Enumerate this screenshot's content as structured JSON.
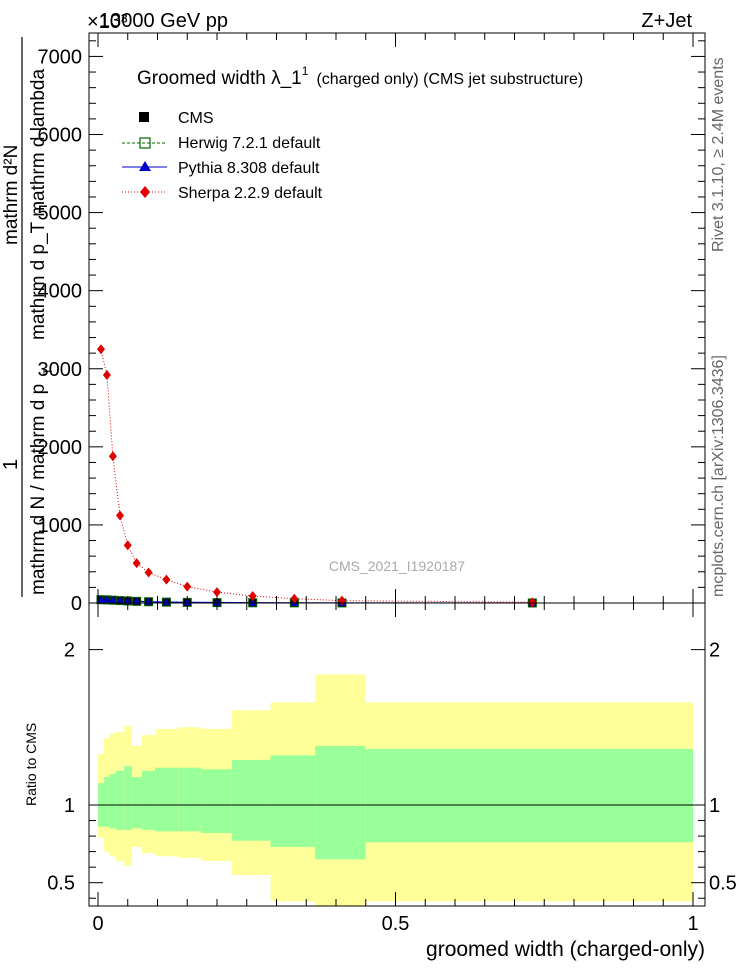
{
  "header": {
    "process": "13000 GeV pp",
    "channel": "Z+Jet",
    "exponent": "×10³",
    "side_top": "Rivet 3.1.10, ≥ 2.4M events",
    "side_bottom": "mcplots.cern.ch [arXiv:1306.3436]",
    "watermark": "CMS_2021_I1920187"
  },
  "colors": {
    "cms": "#000000",
    "herwig": "#006400",
    "pythia": "#0000cc",
    "sherpa": "#e00000",
    "band_inner": "#99ff99",
    "band_outer": "#ffff99"
  },
  "chart_data": [
    {
      "type": "line",
      "title": "Groomed width  λ_1¹ (charged only) (CMS jet substructure)",
      "title_main": "Groomed width  λ_1",
      "title_sup": "1",
      "title_tail": "(charged only) (CMS jet substructure)",
      "ylabel_num": "1            mathrm d²N",
      "ylabel_den": "mathrm d N / mathrm d p_T mathrm d lambda",
      "ylabel_lines": [
        "1",
        "mathrm d N / mathrm d p",
        "T",
        "mathrm d²N",
        "mathrm d p_T mathrm d lambda"
      ],
      "xlim": [
        0,
        1
      ],
      "ylim": [
        0,
        7300
      ],
      "y_ticks": [
        0,
        1000,
        2000,
        3000,
        4000,
        5000,
        6000,
        7000
      ],
      "y_tick_labels": [
        "0",
        "1000",
        "2000",
        "3000",
        "4000",
        "5000",
        "6000",
        "7000"
      ],
      "legend_position": "top-left",
      "series": [
        {
          "name": "CMS",
          "x": [
            0.005,
            0.015,
            0.025,
            0.037,
            0.05,
            0.065,
            0.085,
            0.115,
            0.15,
            0.2,
            0.26,
            0.33,
            0.41,
            0.73
          ],
          "y": [
            40,
            38,
            35,
            30,
            25,
            20,
            15,
            10,
            8,
            5,
            3,
            2,
            1,
            0.5
          ]
        },
        {
          "name": "Herwig 7.2.1 default",
          "x": [
            0.005,
            0.015,
            0.025,
            0.037,
            0.05,
            0.065,
            0.085,
            0.115,
            0.15,
            0.2,
            0.26,
            0.33,
            0.41,
            0.73
          ],
          "y": [
            42,
            40,
            36,
            31,
            26,
            21,
            16,
            11,
            8,
            5,
            3,
            2,
            1,
            0.5
          ]
        },
        {
          "name": "Pythia 8.308 default",
          "x": [
            0.005,
            0.015,
            0.025,
            0.037,
            0.05,
            0.065,
            0.085,
            0.115,
            0.15,
            0.2,
            0.26,
            0.33,
            0.41,
            0.73
          ],
          "y": [
            44,
            41,
            37,
            32,
            27,
            22,
            17,
            11,
            9,
            6,
            3,
            2,
            1,
            0.5
          ]
        },
        {
          "name": "Sherpa 2.2.9 default",
          "x": [
            0.005,
            0.015,
            0.025,
            0.037,
            0.05,
            0.065,
            0.085,
            0.115,
            0.15,
            0.2,
            0.26,
            0.33,
            0.41,
            0.73
          ],
          "y": [
            3250,
            2920,
            1880,
            1120,
            740,
            510,
            390,
            300,
            210,
            140,
            90,
            55,
            30,
            10
          ]
        }
      ]
    },
    {
      "type": "area",
      "ylabel": "Ratio to CMS",
      "xlabel": "groomed width (charged-only)",
      "xlim": [
        0,
        1
      ],
      "ylim": [
        0.35,
        2.3
      ],
      "y_ticks": [
        0.5,
        1,
        2
      ],
      "y_tick_labels": [
        "0.5",
        "1",
        "2"
      ],
      "x_ticks": [
        0,
        0.5,
        1
      ],
      "x_tick_labels": [
        "0",
        "0.5",
        "1"
      ],
      "bin_edges": [
        0,
        0.01,
        0.02,
        0.03,
        0.044,
        0.057,
        0.074,
        0.096,
        0.135,
        0.173,
        0.225,
        0.29,
        0.365,
        0.45,
        1.0
      ],
      "inner_low": [
        0.86,
        0.86,
        0.85,
        0.84,
        0.84,
        0.85,
        0.84,
        0.83,
        0.83,
        0.82,
        0.77,
        0.73,
        0.65,
        0.76
      ],
      "inner_high": [
        1.14,
        1.18,
        1.2,
        1.22,
        1.25,
        1.18,
        1.22,
        1.24,
        1.24,
        1.23,
        1.29,
        1.32,
        1.38,
        1.36
      ],
      "outer_low": [
        0.79,
        0.7,
        0.67,
        0.64,
        0.61,
        0.73,
        0.69,
        0.67,
        0.66,
        0.64,
        0.55,
        0.38,
        0.35,
        0.38
      ],
      "outer_high": [
        1.33,
        1.43,
        1.46,
        1.47,
        1.51,
        1.38,
        1.45,
        1.49,
        1.5,
        1.49,
        1.61,
        1.66,
        1.84,
        1.66
      ]
    }
  ]
}
